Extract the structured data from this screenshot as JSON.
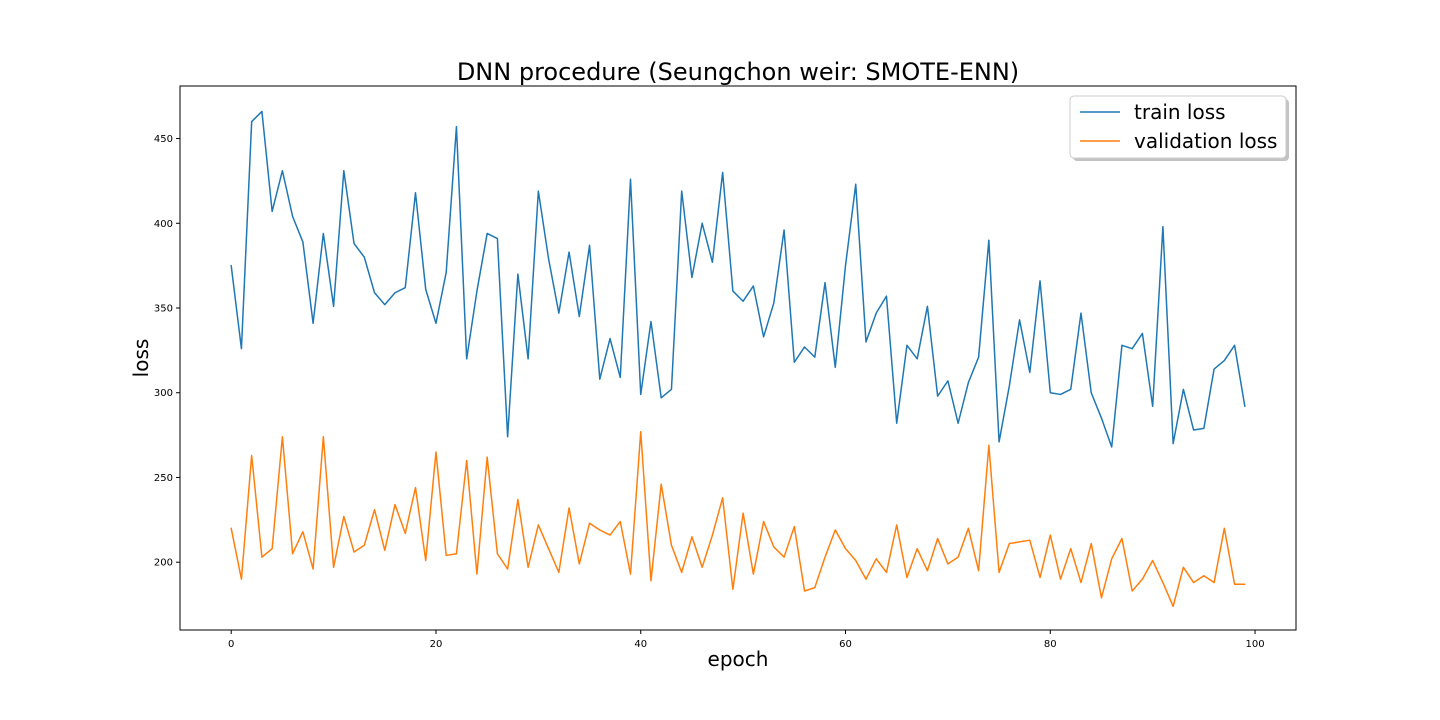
{
  "chart_data": {
    "type": "line",
    "title": "DNN procedure (Seungchon weir: SMOTE-ENN)",
    "xlabel": "epoch",
    "ylabel": "loss",
    "xlim": [
      -5,
      104
    ],
    "ylim": [
      160,
      481
    ],
    "xticks": [
      0,
      20,
      40,
      60,
      80,
      100
    ],
    "yticks": [
      200,
      250,
      300,
      350,
      400,
      450
    ],
    "grid": false,
    "legend_position": "top-right",
    "series": [
      {
        "name": "train loss",
        "color": "#1f77b4",
        "values": [
          375,
          326,
          460,
          466,
          407,
          431,
          404,
          389,
          341,
          394,
          351,
          431,
          388,
          380,
          359,
          352,
          359,
          362,
          418,
          361,
          341,
          371,
          457,
          320,
          360,
          394,
          391,
          274,
          370,
          320,
          419,
          379,
          347,
          383,
          345,
          387,
          308,
          332,
          309,
          426,
          299,
          342,
          297,
          302,
          419,
          368,
          400,
          377,
          430,
          360,
          354,
          363,
          333,
          353,
          396,
          318,
          327,
          321,
          365,
          315,
          375,
          423,
          330,
          347,
          357,
          282,
          328,
          320,
          351,
          298,
          307,
          282,
          306,
          321,
          390,
          271,
          304,
          343,
          312,
          366,
          300,
          299,
          302,
          347,
          300,
          285,
          268,
          328,
          326,
          335,
          292,
          398,
          270,
          302,
          278,
          279,
          314,
          319,
          328,
          292
        ]
      },
      {
        "name": "validation loss",
        "color": "#ff7f0e",
        "values": [
          220,
          190,
          263,
          203,
          208,
          274,
          205,
          218,
          196,
          274,
          197,
          227,
          206,
          210,
          231,
          207,
          234,
          217,
          244,
          201,
          265,
          204,
          205,
          260,
          193,
          262,
          205,
          196,
          237,
          197,
          222,
          208,
          194,
          232,
          199,
          223,
          219,
          216,
          224,
          193,
          277,
          189,
          246,
          210,
          194,
          215,
          197,
          216,
          238,
          184,
          229,
          193,
          224,
          209,
          203,
          221,
          183,
          185,
          203,
          219,
          208,
          201,
          190,
          202,
          194,
          222,
          191,
          208,
          195,
          214,
          199,
          203,
          220,
          195,
          269,
          194,
          211,
          212,
          213,
          191,
          216,
          190,
          208,
          188,
          211,
          179,
          202,
          214,
          183,
          190,
          201,
          188,
          174,
          197,
          188,
          192,
          188,
          220,
          187,
          187
        ]
      }
    ]
  }
}
